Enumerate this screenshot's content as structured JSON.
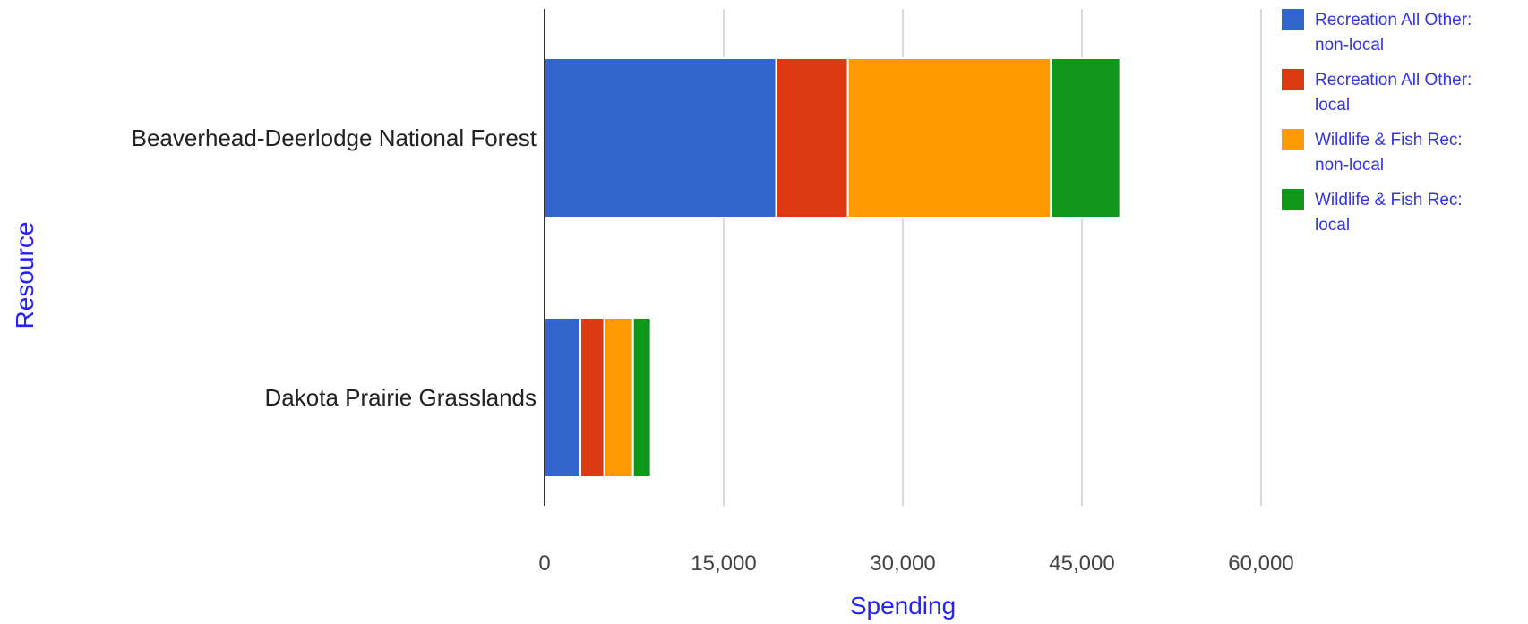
{
  "chart_data": {
    "type": "bar",
    "orientation": "horizontal",
    "stacked": true,
    "categories": [
      "Beaverhead-Deerlodge National Forest",
      "Dakota Prairie Grasslands"
    ],
    "series": [
      {
        "name": "Recreation All Other: non-local",
        "legend_lines": [
          "Recreation All Other:",
          "non-local"
        ],
        "color": "#3366cc",
        "values": [
          19400,
          3000
        ]
      },
      {
        "name": "Recreation All Other: local",
        "legend_lines": [
          "Recreation All Other:",
          "local"
        ],
        "color": "#dc3912",
        "values": [
          6000,
          2000
        ]
      },
      {
        "name": "Wildlife & Fish Rec: non-local",
        "legend_lines": [
          "Wildlife & Fish Rec:",
          "non-local"
        ],
        "color": "#ff9900",
        "values": [
          17000,
          2400
        ]
      },
      {
        "name": "Wildlife & Fish Rec: local",
        "legend_lines": [
          "Wildlife & Fish Rec:",
          "local"
        ],
        "color": "#109618",
        "values": [
          5800,
          1500
        ]
      }
    ],
    "xlabel": "Spending",
    "ylabel": "Resource",
    "xlim": [
      0,
      60000
    ],
    "x_ticks": [
      0,
      15000,
      30000,
      45000,
      60000
    ],
    "x_tick_labels": [
      "0",
      "15,000",
      "30,000",
      "45,000",
      "60,000"
    ],
    "grid": true,
    "legend_position": "right"
  }
}
